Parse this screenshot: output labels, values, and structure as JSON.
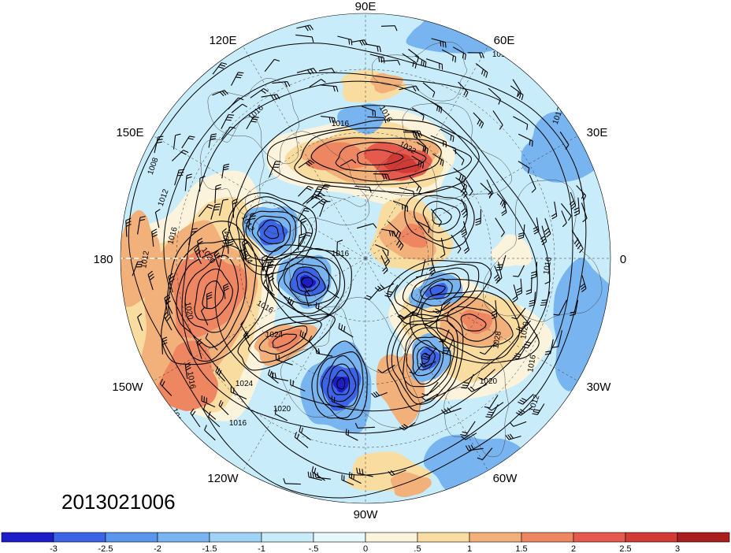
{
  "date_stamp": "2013021006",
  "longitude_labels": [
    {
      "key": "90E",
      "text": "90E"
    },
    {
      "key": "60E",
      "text": "60E"
    },
    {
      "key": "120E",
      "text": "120E"
    },
    {
      "key": "30E",
      "text": "30E"
    },
    {
      "key": "150E",
      "text": "150E"
    },
    {
      "key": "0",
      "text": "0"
    },
    {
      "key": "180",
      "text": "180"
    },
    {
      "key": "30W",
      "text": "30W"
    },
    {
      "key": "150W",
      "text": "150W"
    },
    {
      "key": "60W",
      "text": "60W"
    },
    {
      "key": "120W",
      "text": "120W"
    },
    {
      "key": "90W",
      "text": "90W"
    }
  ],
  "isobar_labels": [
    "1012",
    "1016",
    "1008",
    "1012",
    "1016",
    "1012",
    "1004",
    "1020",
    "1016",
    "1016",
    "1024",
    "1020",
    "1016",
    "1012",
    "1024",
    "1020",
    "1016",
    "1032",
    "1016",
    "1012",
    "1008",
    "1016",
    "1020",
    "1028",
    "1020",
    "1016",
    "1012",
    "1016",
    "1004",
    "1012"
  ],
  "colorbar": {
    "colors": [
      "#1d1dc8",
      "#3c64e6",
      "#5a96ee",
      "#78b4f0",
      "#a0d2f5",
      "#c8ecfa",
      "#e6f8fa",
      "#fcf3dc",
      "#f8dca0",
      "#f2b07a",
      "#ee8662",
      "#e65a4e",
      "#d23a36",
      "#aa1e1e"
    ],
    "tick_labels": [
      "-3",
      "-2.5",
      "-2",
      "-1.5",
      "-1",
      "-.5",
      "0",
      ".5",
      "1",
      "1.5",
      "2",
      "2.5",
      "3"
    ]
  },
  "map_fill_colors": {
    "base_light_blue": "#c8ecfa",
    "medium_blue": "#78b4f0",
    "dark_blue": "#3c64e6",
    "deep_blue": "#1d1dc8",
    "cream": "#fcf3dc",
    "tan": "#f8dca0",
    "orange": "#f2b07a",
    "salmon": "#ee8662",
    "red": "#e65a4e",
    "dark_red": "#d23a36"
  }
}
